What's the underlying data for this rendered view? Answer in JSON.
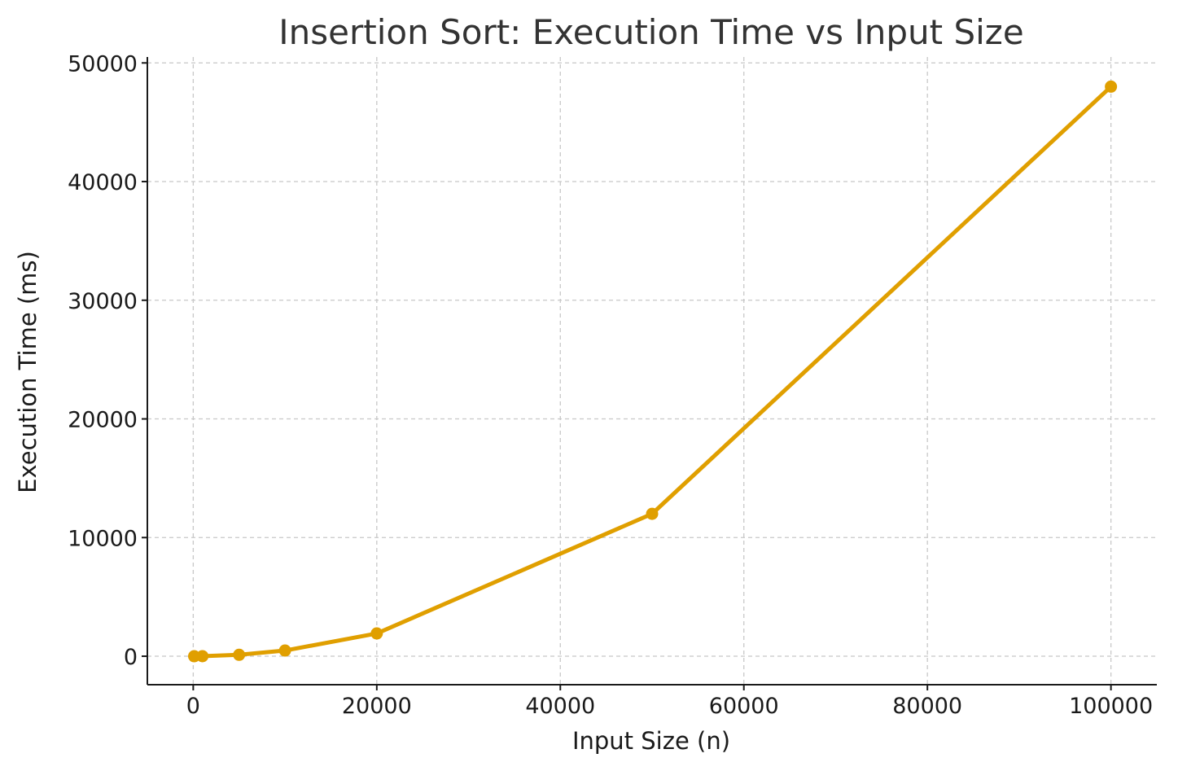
{
  "chart_data": {
    "type": "line",
    "title": "Insertion Sort: Execution Time vs Input Size",
    "xlabel": "Input Size (n)",
    "ylabel": "Execution Time (ms)",
    "xlim": [
      -5000,
      105000
    ],
    "ylim": [
      -2400,
      50500
    ],
    "xticks": [
      0,
      20000,
      40000,
      60000,
      80000,
      100000
    ],
    "yticks": [
      0,
      10000,
      20000,
      30000,
      40000,
      50000
    ],
    "grid": true,
    "color": "#e09f00",
    "series": [
      {
        "x": [
          100,
          1000,
          5000,
          10000,
          20000,
          50000,
          100000
        ],
        "y": [
          0,
          5,
          120,
          480,
          1920,
          12000,
          48000
        ]
      }
    ]
  }
}
